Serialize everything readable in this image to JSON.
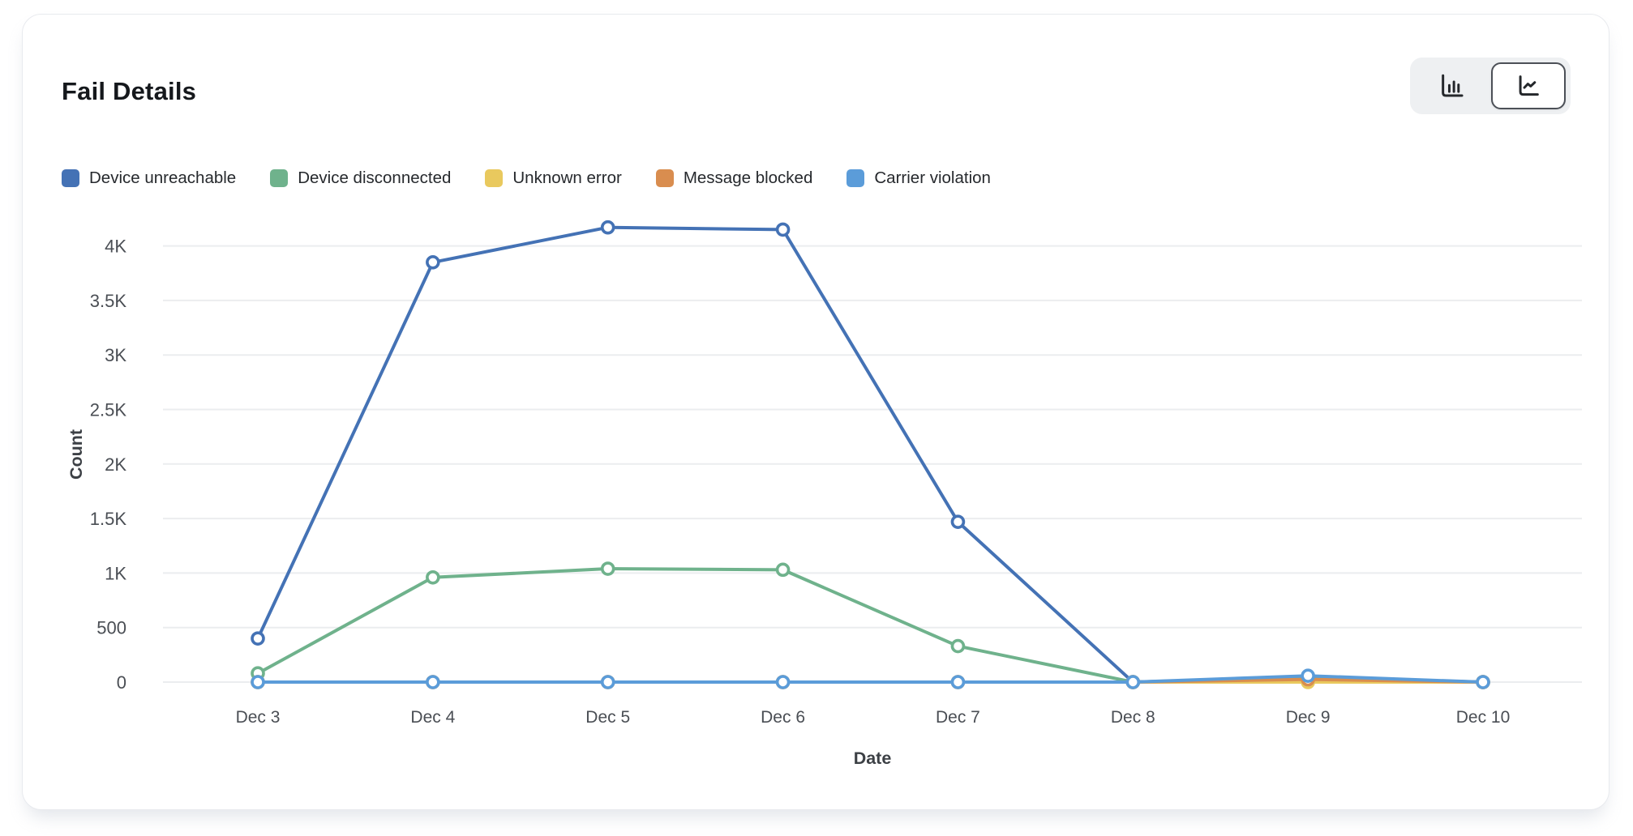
{
  "card": {
    "title": "Fail Details"
  },
  "chart_toggle": {
    "options": [
      {
        "id": "bar",
        "icon": "bar-chart-icon",
        "selected": false
      },
      {
        "id": "line",
        "icon": "line-chart-icon",
        "selected": true
      }
    ]
  },
  "chart_data": {
    "type": "line",
    "title": "Fail Details",
    "xlabel": "Date",
    "ylabel": "Count",
    "categories": [
      "Dec 3",
      "Dec 4",
      "Dec 5",
      "Dec 6",
      "Dec 7",
      "Dec 8",
      "Dec 9",
      "Dec 10"
    ],
    "series": [
      {
        "name": "Device unreachable",
        "color": "#4472b5",
        "values": [
          400,
          3850,
          4170,
          4150,
          1470,
          0,
          45,
          0
        ]
      },
      {
        "name": "Device disconnected",
        "color": "#6fb28c",
        "values": [
          80,
          960,
          1040,
          1030,
          330,
          0,
          35,
          0
        ]
      },
      {
        "name": "Unknown error",
        "color": "#e9c95e",
        "values": [
          0,
          0,
          0,
          0,
          0,
          0,
          0,
          0
        ]
      },
      {
        "name": "Message blocked",
        "color": "#d98d4f",
        "values": [
          0,
          0,
          0,
          0,
          0,
          0,
          25,
          0
        ]
      },
      {
        "name": "Carrier violation",
        "color": "#5b9cd9",
        "values": [
          0,
          0,
          0,
          0,
          0,
          0,
          58,
          0
        ]
      }
    ],
    "ylim": [
      0,
      4000
    ],
    "ytick_values": [
      0,
      500,
      1000,
      1500,
      2000,
      2500,
      3000,
      3500,
      4000
    ],
    "ytick_labels": [
      "0",
      "500",
      "1K",
      "1.5K",
      "2K",
      "2.5K",
      "3K",
      "3.5K",
      "4K"
    ],
    "grid": "horizontal",
    "legend_position": "top",
    "marker": "open-circle"
  }
}
